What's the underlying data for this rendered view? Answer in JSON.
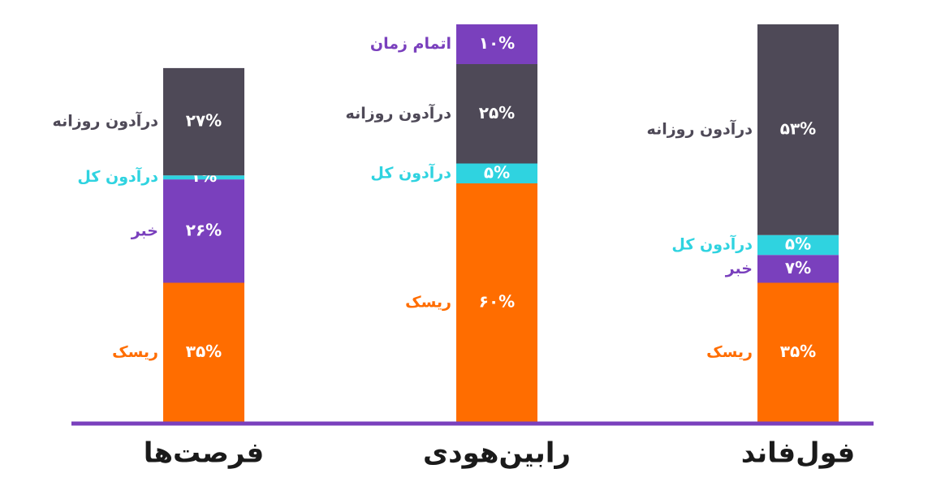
{
  "chart_data": {
    "type": "stacked-bar",
    "categories": [
      "فرصت‌ها",
      "رابین‌هودی",
      "فول‌فاند"
    ],
    "series": [
      {
        "name": "ریسک",
        "color": "#ff6d00",
        "values": [
          35,
          60,
          35
        ],
        "value_labels": [
          "۳۵%",
          "۶۰%",
          "۳۵%"
        ]
      },
      {
        "name": "خبر",
        "color": "#7a40bd",
        "values": [
          26,
          null,
          7
        ],
        "value_labels": [
          "۲۶%",
          null,
          "۷%"
        ]
      },
      {
        "name": "درآدون کل",
        "color": "#2fd3e0",
        "values": [
          1,
          5,
          5
        ],
        "value_labels": [
          "۱%",
          "۵%",
          "۵%"
        ]
      },
      {
        "name": "درآدون روزانه",
        "color": "#4e4957",
        "values": [
          27,
          25,
          53
        ],
        "value_labels": [
          "۲۷%",
          "۲۵%",
          "۵۳%"
        ]
      },
      {
        "name": "اتمام زمان",
        "color": "#7a40bd",
        "values": [
          null,
          10,
          null
        ],
        "value_labels": [
          null,
          "۱۰%",
          null
        ]
      }
    ],
    "baseline_color": "#7a40bd"
  }
}
